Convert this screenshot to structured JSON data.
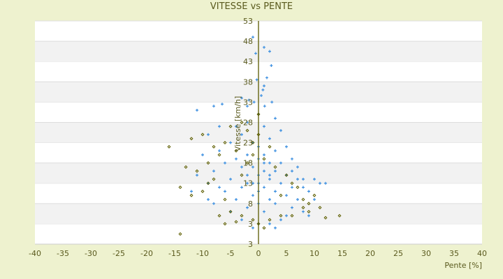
{
  "chart_data": {
    "type": "scatter",
    "title": "VITESSE vs PENTE",
    "xlabel": "Pente [%]",
    "ylabel": "Vitesse [km/h]",
    "xlim": [
      -40,
      40
    ],
    "ylim": [
      -2,
      53
    ],
    "xticks": [
      -40,
      -35,
      -30,
      -25,
      -20,
      -15,
      -10,
      -5,
      0,
      5,
      10,
      15,
      20,
      25,
      30,
      35,
      40
    ],
    "yticks": [
      3,
      8,
      13,
      18,
      23,
      28,
      33,
      38,
      43,
      48,
      53
    ],
    "ytick_labels": [
      "3",
      "8",
      "13",
      "18",
      "23",
      "28",
      "33",
      "38",
      "43",
      "48",
      "53"
    ],
    "grid": "horizontal alternating bands",
    "colors": {
      "series1": "#3a8ee0",
      "series2": "#5e5e00",
      "axis": "#5a5a00",
      "background": "#eef2cf"
    },
    "series": [
      {
        "marker": "plus",
        "color": "#3a8ee0",
        "points": [
          [
            -1,
            49
          ],
          [
            1,
            46.5
          ],
          [
            -0.5,
            45
          ],
          [
            2,
            45.5
          ],
          [
            2.3,
            42
          ],
          [
            1.5,
            39
          ],
          [
            -0.3,
            38.5
          ],
          [
            1,
            37
          ],
          [
            0.8,
            36
          ],
          [
            -3,
            34
          ],
          [
            -1.7,
            33.5
          ],
          [
            0.5,
            34.6
          ],
          [
            -0.8,
            33
          ],
          [
            1.1,
            32
          ],
          [
            -2,
            32
          ],
          [
            2.4,
            33
          ],
          [
            -6.5,
            32.5
          ],
          [
            -8,
            32
          ],
          [
            -11,
            31
          ],
          [
            0,
            30
          ],
          [
            3,
            29
          ],
          [
            -2,
            28
          ],
          [
            1,
            27
          ],
          [
            -4,
            27
          ],
          [
            4,
            26
          ],
          [
            -3,
            25
          ],
          [
            2,
            24
          ],
          [
            -1,
            23
          ],
          [
            -5,
            23
          ],
          [
            5,
            22
          ],
          [
            0,
            22
          ],
          [
            -7,
            21
          ],
          [
            3,
            21
          ],
          [
            -2,
            20
          ],
          [
            1,
            20
          ],
          [
            6,
            19
          ],
          [
            -4,
            19
          ],
          [
            0,
            19
          ],
          [
            -6,
            18
          ],
          [
            2,
            18
          ],
          [
            4,
            18
          ],
          [
            -1,
            17
          ],
          [
            -3,
            17
          ],
          [
            7,
            17
          ],
          [
            -8,
            16
          ],
          [
            1,
            16
          ],
          [
            3,
            16
          ],
          [
            -2,
            15
          ],
          [
            5,
            15
          ],
          [
            0,
            15
          ],
          [
            -5,
            14
          ],
          [
            2,
            14
          ],
          [
            8,
            14
          ],
          [
            -1,
            13
          ],
          [
            4,
            13
          ],
          [
            -9,
            13
          ],
          [
            0,
            13
          ],
          [
            11,
            13
          ],
          [
            12,
            13
          ],
          [
            -3,
            12
          ],
          [
            6,
            12
          ],
          [
            1,
            12
          ],
          [
            -6,
            11
          ],
          [
            3,
            11
          ],
          [
            9,
            11
          ],
          [
            -12,
            11
          ],
          [
            -1,
            10
          ],
          [
            5,
            10
          ],
          [
            2,
            9
          ],
          [
            -4,
            9
          ],
          [
            7,
            9
          ],
          [
            10,
            9
          ],
          [
            0,
            8
          ],
          [
            -8,
            8
          ],
          [
            3,
            8
          ],
          [
            6,
            7
          ],
          [
            -2,
            7
          ],
          [
            8,
            6
          ],
          [
            1,
            6
          ],
          [
            -5,
            6
          ],
          [
            9,
            5
          ],
          [
            4,
            4
          ],
          [
            -3,
            4
          ],
          [
            2,
            3
          ],
          [
            0,
            3
          ],
          [
            -10,
            20
          ],
          [
            -9,
            25
          ],
          [
            -7,
            27
          ],
          [
            10,
            14
          ],
          [
            8,
            12
          ],
          [
            -11,
            15
          ],
          [
            6,
            16
          ],
          [
            7,
            14
          ],
          [
            -7,
            12
          ],
          [
            -9,
            9
          ],
          [
            5,
            5
          ],
          [
            3,
            2
          ],
          [
            -1,
            2
          ],
          [
            0,
            11
          ],
          [
            2,
            15
          ],
          [
            1,
            18
          ],
          [
            -2,
            13
          ]
        ]
      },
      {
        "marker": "diamond",
        "color": "#5e5e00",
        "points": [
          [
            -16,
            22
          ],
          [
            -12,
            24
          ],
          [
            -10,
            25
          ],
          [
            -8,
            22
          ],
          [
            -6,
            23
          ],
          [
            -5,
            27
          ],
          [
            -3,
            28
          ],
          [
            -2,
            26
          ],
          [
            0,
            30
          ],
          [
            -4,
            21
          ],
          [
            -7,
            20
          ],
          [
            -9,
            18
          ],
          [
            -11,
            16
          ],
          [
            -13,
            17
          ],
          [
            -14,
            12
          ],
          [
            -12,
            10
          ],
          [
            -10,
            11
          ],
          [
            -8,
            14
          ],
          [
            -6,
            9
          ],
          [
            -5,
            6
          ],
          [
            -3,
            5
          ],
          [
            -1,
            4
          ],
          [
            0,
            3
          ],
          [
            1,
            2
          ],
          [
            -14,
            0.5
          ],
          [
            -6,
            3
          ],
          [
            -4,
            3.5
          ],
          [
            2,
            4
          ],
          [
            4,
            5
          ],
          [
            6,
            5
          ],
          [
            8,
            7
          ],
          [
            9,
            6
          ],
          [
            11,
            7
          ],
          [
            12,
            4.5
          ],
          [
            14.5,
            5
          ],
          [
            10,
            10
          ],
          [
            8,
            9
          ],
          [
            7,
            12
          ],
          [
            6,
            13
          ],
          [
            5,
            15
          ],
          [
            3,
            17
          ],
          [
            1,
            19
          ],
          [
            -1,
            20
          ],
          [
            -2,
            18
          ],
          [
            2,
            22
          ],
          [
            -3,
            15
          ],
          [
            4,
            10
          ],
          [
            9,
            8
          ],
          [
            -7,
            5
          ],
          [
            -9,
            13
          ],
          [
            0,
            25
          ],
          [
            -1,
            23
          ]
        ]
      }
    ]
  }
}
